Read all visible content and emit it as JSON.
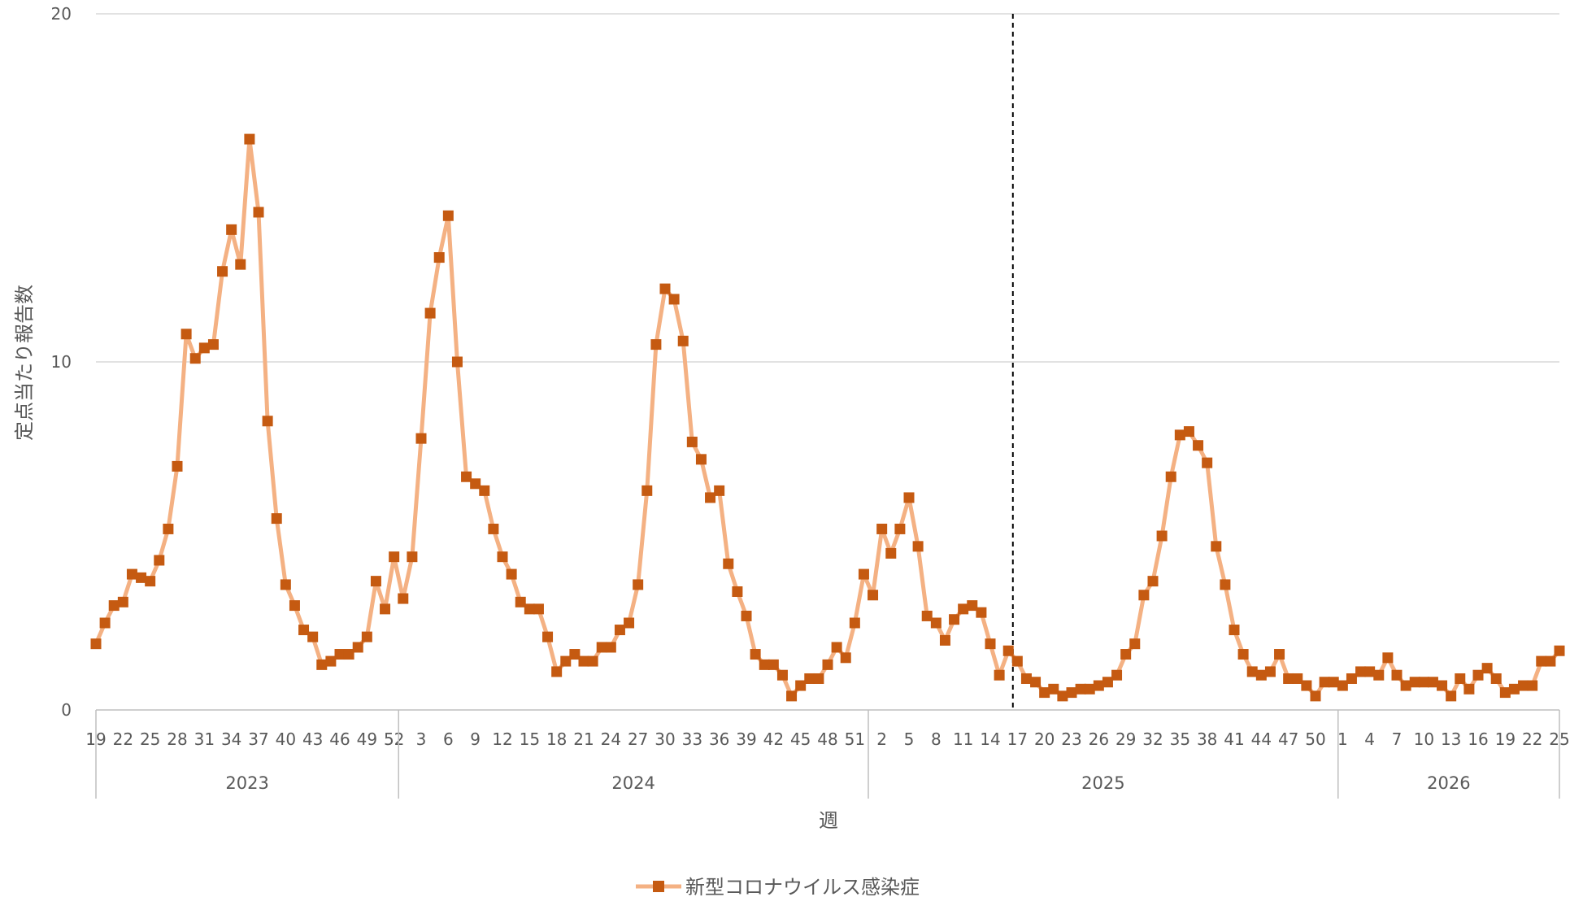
{
  "chart_data": {
    "type": "line",
    "subtitle": "",
    "xlabel": "週",
    "ylabel": "定点当たり報告数",
    "ylim": [
      0,
      20
    ],
    "yticks": [
      0,
      10,
      20
    ],
    "grid": true,
    "legend_position": "bottom",
    "marker_line_week": "2025-17",
    "years": [
      {
        "label": "2023",
        "weeks": [
          19,
          52
        ]
      },
      {
        "label": "2024",
        "weeks": [
          1,
          52
        ]
      },
      {
        "label": "2025",
        "weeks": [
          1,
          52
        ]
      },
      {
        "label": "2026",
        "weeks": [
          1,
          25
        ]
      }
    ],
    "series": [
      {
        "name": "新型コロナウイルス感染症",
        "color": "#F4B183",
        "marker_color": "#C55A11",
        "values": [
          1.9,
          2.5,
          3.0,
          3.1,
          3.9,
          3.8,
          3.7,
          4.3,
          5.2,
          7.0,
          10.8,
          10.1,
          10.4,
          10.5,
          12.6,
          13.8,
          12.8,
          16.4,
          14.3,
          8.3,
          5.5,
          3.6,
          3.0,
          2.3,
          2.1,
          1.3,
          1.4,
          1.6,
          1.6,
          1.8,
          2.1,
          3.7,
          2.9,
          4.4,
          3.2,
          4.4,
          7.8,
          11.4,
          13.0,
          14.2,
          10.0,
          6.7,
          6.5,
          6.3,
          5.2,
          4.4,
          3.9,
          3.1,
          2.9,
          2.9,
          2.1,
          1.1,
          1.4,
          1.6,
          1.4,
          1.4,
          1.8,
          1.8,
          2.3,
          2.5,
          3.6,
          6.3,
          10.5,
          12.1,
          11.8,
          10.6,
          7.7,
          7.2,
          6.1,
          6.3,
          4.2,
          3.4,
          2.7,
          1.6,
          1.3,
          1.3,
          1.0,
          0.4,
          0.7,
          0.9,
          0.9,
          1.3,
          1.8,
          1.5,
          2.5,
          3.9,
          3.3,
          5.2,
          4.5,
          5.2,
          6.1,
          4.7,
          2.7,
          2.5,
          2.0,
          2.6,
          2.9,
          3.0,
          2.8,
          1.9,
          1.0,
          1.7,
          1.4,
          0.9,
          0.8,
          0.5,
          0.6,
          0.4,
          0.5,
          0.6,
          0.6,
          0.7,
          0.8,
          1.0,
          1.6,
          1.9,
          3.3,
          3.7,
          5.0,
          6.7,
          7.9,
          8.0,
          7.6,
          7.1,
          4.7,
          3.6,
          2.3,
          1.6,
          1.1,
          1.0,
          1.1,
          1.6,
          0.9,
          0.9,
          0.7,
          0.4,
          0.8,
          0.8,
          0.7,
          0.9,
          1.1,
          1.1,
          1.0,
          1.5,
          1.0,
          0.7,
          0.8,
          0.8,
          0.8,
          0.7,
          0.4,
          0.9,
          0.6,
          1.0,
          1.2,
          0.9,
          0.5,
          0.6,
          0.7,
          0.7,
          1.4,
          1.4,
          1.7
        ]
      }
    ]
  }
}
